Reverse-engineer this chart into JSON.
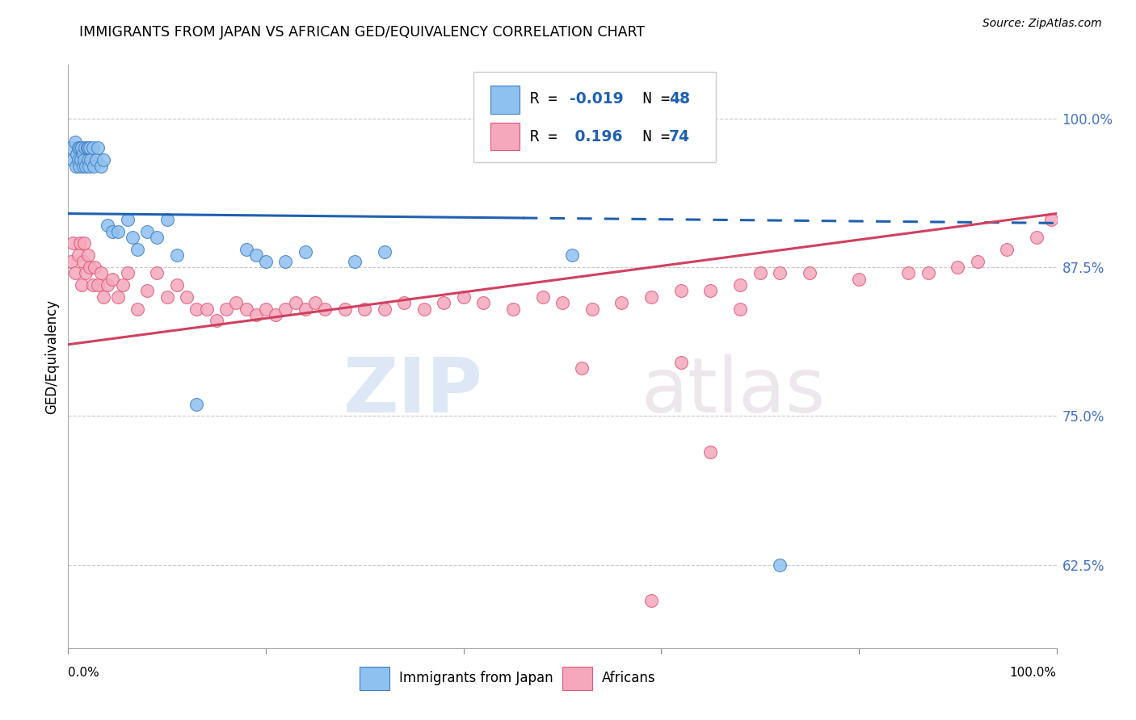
{
  "title": "IMMIGRANTS FROM JAPAN VS AFRICAN GED/EQUIVALENCY CORRELATION CHART",
  "source": "Source: ZipAtlas.com",
  "ylabel": "GED/Equivalency",
  "ytick_labels": [
    "62.5%",
    "75.0%",
    "87.5%",
    "100.0%"
  ],
  "ytick_values": [
    0.625,
    0.75,
    0.875,
    1.0
  ],
  "xlim": [
    0.0,
    1.0
  ],
  "ylim": [
    0.555,
    1.045
  ],
  "legend_label1": "Immigrants from Japan",
  "legend_label2": "Africans",
  "R1": "-0.019",
  "N1": "48",
  "R2": "0.196",
  "N2": "74",
  "japan_x": [
    0.003,
    0.005,
    0.007,
    0.008,
    0.009,
    0.01,
    0.01,
    0.011,
    0.012,
    0.013,
    0.014,
    0.015,
    0.015,
    0.016,
    0.017,
    0.018,
    0.019,
    0.02,
    0.02,
    0.021,
    0.022,
    0.023,
    0.025,
    0.026,
    0.028,
    0.03,
    0.033,
    0.036,
    0.04,
    0.045,
    0.05,
    0.06,
    0.065,
    0.07,
    0.08,
    0.09,
    0.1,
    0.11,
    0.13,
    0.18,
    0.19,
    0.2,
    0.22,
    0.24,
    0.29,
    0.32,
    0.51,
    0.72
  ],
  "japan_y": [
    0.975,
    0.965,
    0.98,
    0.96,
    0.97,
    0.975,
    0.965,
    0.96,
    0.975,
    0.965,
    0.975,
    0.97,
    0.96,
    0.965,
    0.975,
    0.96,
    0.975,
    0.965,
    0.975,
    0.96,
    0.975,
    0.965,
    0.975,
    0.96,
    0.965,
    0.975,
    0.96,
    0.965,
    0.91,
    0.905,
    0.905,
    0.915,
    0.9,
    0.89,
    0.905,
    0.9,
    0.915,
    0.885,
    0.76,
    0.89,
    0.885,
    0.88,
    0.88,
    0.888,
    0.88,
    0.888,
    0.885,
    0.625
  ],
  "africa_x": [
    0.003,
    0.005,
    0.007,
    0.01,
    0.012,
    0.014,
    0.015,
    0.016,
    0.018,
    0.02,
    0.022,
    0.025,
    0.027,
    0.03,
    0.033,
    0.036,
    0.04,
    0.045,
    0.05,
    0.055,
    0.06,
    0.07,
    0.08,
    0.09,
    0.1,
    0.11,
    0.12,
    0.13,
    0.14,
    0.15,
    0.16,
    0.17,
    0.18,
    0.19,
    0.2,
    0.21,
    0.22,
    0.23,
    0.24,
    0.25,
    0.26,
    0.28,
    0.3,
    0.32,
    0.34,
    0.36,
    0.38,
    0.4,
    0.42,
    0.45,
    0.48,
    0.5,
    0.53,
    0.56,
    0.59,
    0.62,
    0.65,
    0.68,
    0.7,
    0.72,
    0.62,
    0.68,
    0.52,
    0.75,
    0.8,
    0.85,
    0.87,
    0.9,
    0.92,
    0.95,
    0.98,
    0.995,
    0.65,
    0.59
  ],
  "africa_y": [
    0.88,
    0.895,
    0.87,
    0.885,
    0.895,
    0.86,
    0.88,
    0.895,
    0.87,
    0.885,
    0.875,
    0.86,
    0.875,
    0.86,
    0.87,
    0.85,
    0.86,
    0.865,
    0.85,
    0.86,
    0.87,
    0.84,
    0.855,
    0.87,
    0.85,
    0.86,
    0.85,
    0.84,
    0.84,
    0.83,
    0.84,
    0.845,
    0.84,
    0.835,
    0.84,
    0.835,
    0.84,
    0.845,
    0.84,
    0.845,
    0.84,
    0.84,
    0.84,
    0.84,
    0.845,
    0.84,
    0.845,
    0.85,
    0.845,
    0.84,
    0.85,
    0.845,
    0.84,
    0.845,
    0.85,
    0.855,
    0.855,
    0.86,
    0.87,
    0.87,
    0.795,
    0.84,
    0.79,
    0.87,
    0.865,
    0.87,
    0.87,
    0.875,
    0.88,
    0.89,
    0.9,
    0.915,
    0.72,
    0.595
  ],
  "japan_color": "#8ec0f0",
  "africa_color": "#f5a8bc",
  "japan_edge_color": "#4080c0",
  "africa_edge_color": "#e05878",
  "blue_line_color": "#2060b0",
  "pink_line_color": "#d04060",
  "background_color": "#ffffff",
  "watermark_zip": "ZIP",
  "watermark_atlas": "atlas",
  "marker_size": 130,
  "blue_line_start_y": 0.92,
  "blue_line_end_y": 0.912,
  "pink_line_start_y": 0.81,
  "pink_line_end_y": 0.92
}
